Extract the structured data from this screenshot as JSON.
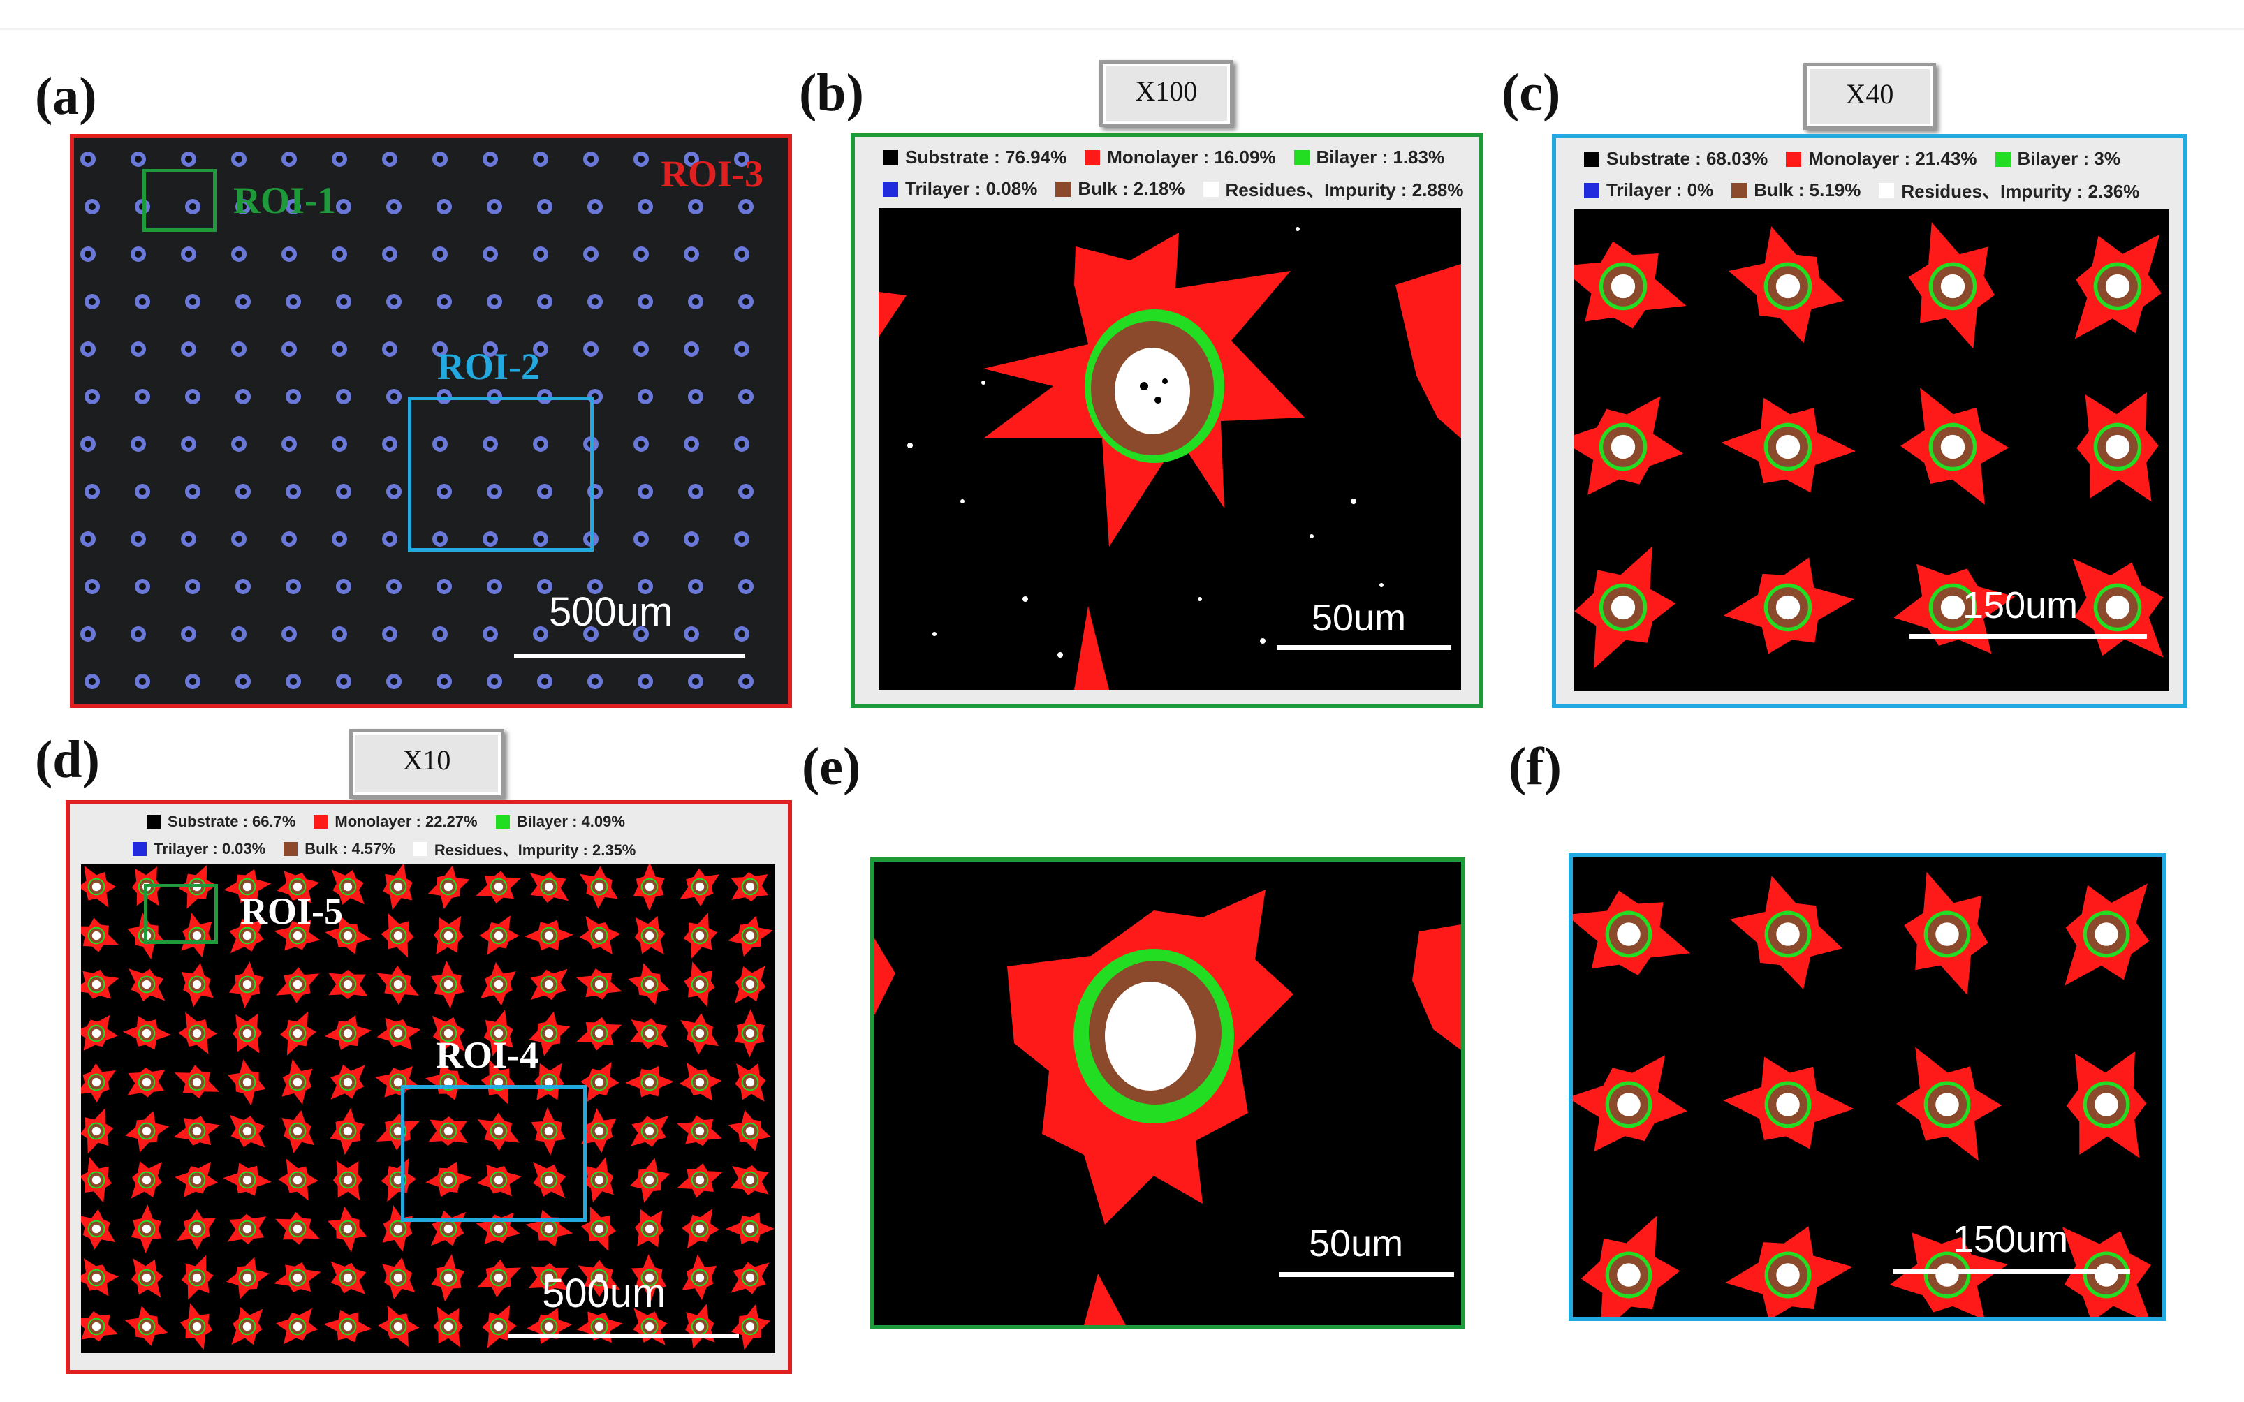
{
  "panels": {
    "a": {
      "label": "(a)",
      "rois": [
        "ROI-1",
        "ROI-2",
        "ROI-3"
      ],
      "scale": "500um"
    },
    "b": {
      "label": "(b)",
      "magnification": "X100",
      "scale": "50um",
      "legend": {
        "substrate": "Substrate : 76.94%",
        "monolayer": "Monolayer : 16.09%",
        "bilayer": "Bilayer : 1.83%",
        "trilayer": "Trilayer : 0.08%",
        "bulk": "Bulk : 2.18%",
        "residues": "Residues、Impurity : 2.88%"
      }
    },
    "c": {
      "label": "(c)",
      "magnification": "X40",
      "scale": "150um",
      "legend": {
        "substrate": "Substrate : 68.03%",
        "monolayer": "Monolayer : 21.43%",
        "bilayer": "Bilayer : 3%",
        "trilayer": "Trilayer : 0%",
        "bulk": "Bulk : 5.19%",
        "residues": "Residues、Impurity : 2.36%"
      }
    },
    "d": {
      "label": "(d)",
      "magnification": "X10",
      "scale": "500um",
      "rois": [
        "ROI-4",
        "ROI-5"
      ],
      "legend": {
        "substrate": "Substrate : 66.7%",
        "monolayer": "Monolayer : 22.27%",
        "bilayer": "Bilayer : 4.09%",
        "trilayer": "Trilayer : 0.03%",
        "bulk": "Bulk : 4.57%",
        "residues": "Residues、Impurity : 2.35%"
      }
    },
    "e": {
      "label": "(e)",
      "scale": "50um"
    },
    "f": {
      "label": "(f)",
      "scale": "150um"
    }
  },
  "colors": {
    "substrate": "#000000",
    "monolayer": "#ff1a1a",
    "bilayer": "#22dd22",
    "trilayer": "#1f2bdc",
    "bulk": "#8b4a2b",
    "residues": "#ffffff",
    "roiGreen": "#1e9a3a",
    "roiBlue": "#22a9e0",
    "roiRed": "#e02020"
  }
}
